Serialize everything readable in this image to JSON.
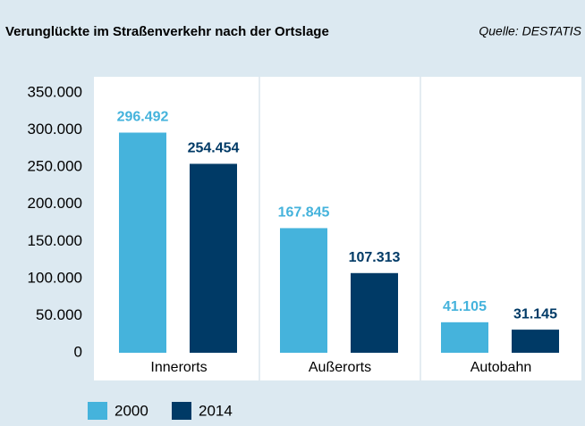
{
  "chart_data": {
    "type": "bar",
    "title": "Verunglückte im Straßenverkehr nach der Ortslage",
    "source": "Quelle: DESTATIS",
    "categories": [
      "Innerorts",
      "Außerorts",
      "Autobahn"
    ],
    "series": [
      {
        "name": "2000",
        "color": "#45b3dc",
        "values": [
          296492,
          167845,
          41105
        ],
        "value_labels": [
          "296.492",
          "167.845",
          "41.105"
        ]
      },
      {
        "name": "2014",
        "color": "#003a66",
        "values": [
          254454,
          107313,
          31145
        ],
        "value_labels": [
          "254.454",
          "107.313",
          "31.145"
        ]
      }
    ],
    "ylim": [
      0,
      350000
    ],
    "yticks": [
      0,
      {
        "value": 50000,
        "label": "50.000"
      },
      {
        "value": 100000,
        "label": "100.000"
      },
      {
        "value": 150000,
        "label": "150.000"
      },
      {
        "value": 200000,
        "label": "200.000"
      },
      {
        "value": 250000,
        "label": "250.000"
      },
      {
        "value": 300000,
        "label": "300.000"
      },
      {
        "value": 350000,
        "label": "350.000"
      }
    ]
  }
}
